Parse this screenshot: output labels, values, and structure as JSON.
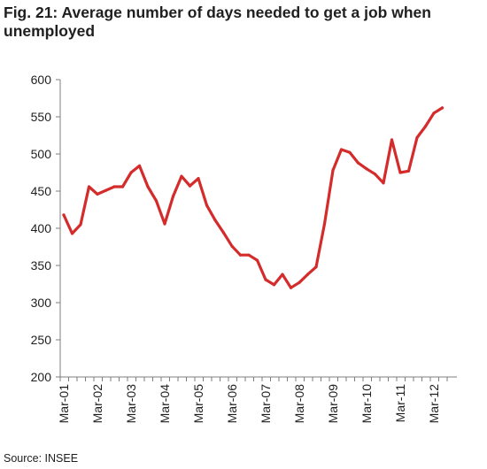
{
  "chart_data": {
    "type": "line",
    "title": "Fig. 21: Average number of days needed to get a job when unemployed",
    "source": "Source: INSEE",
    "xlabel": "",
    "ylabel": "",
    "ylim": [
      200,
      600
    ],
    "yticks": [
      "600",
      "550",
      "500",
      "450",
      "400",
      "350",
      "300",
      "250",
      "200"
    ],
    "xticks": [
      "Mar-01",
      "Mar-02",
      "Mar-03",
      "Mar-04",
      "Mar-05",
      "Mar-06",
      "Mar-07",
      "Mar-08",
      "Mar-09",
      "Mar-10",
      "Mar-11",
      "Mar-12"
    ],
    "grid": false,
    "legend": "none",
    "line_color": "#d42b2b",
    "x": [
      "Mar-01",
      "Jun-01",
      "Sep-01",
      "Dec-01",
      "Mar-02",
      "Jun-02",
      "Sep-02",
      "Dec-02",
      "Mar-03",
      "Jun-03",
      "Sep-03",
      "Dec-03",
      "Mar-04",
      "Jun-04",
      "Sep-04",
      "Dec-04",
      "Mar-05",
      "Jun-05",
      "Sep-05",
      "Dec-05",
      "Mar-06",
      "Jun-06",
      "Sep-06",
      "Dec-06",
      "Mar-07",
      "Jun-07",
      "Sep-07",
      "Dec-07",
      "Mar-08",
      "Jun-08",
      "Sep-08",
      "Dec-08",
      "Mar-09",
      "Jun-09",
      "Sep-09",
      "Dec-09",
      "Mar-10",
      "Jun-10",
      "Sep-10",
      "Dec-10",
      "Mar-11",
      "Jun-11",
      "Sep-11",
      "Dec-11",
      "Mar-12",
      "Jun-12"
    ],
    "series": [
      {
        "values": [
          418,
          393,
          405,
          456,
          446,
          451,
          456,
          456,
          475,
          484,
          456,
          437,
          406,
          443,
          470,
          457,
          467,
          431,
          411,
          394,
          376,
          364,
          364,
          357,
          331,
          324,
          338,
          320,
          327,
          338,
          348,
          406,
          478,
          506,
          502,
          488,
          480,
          473,
          461,
          519,
          475,
          477,
          522,
          537,
          555,
          562
        ]
      }
    ]
  }
}
